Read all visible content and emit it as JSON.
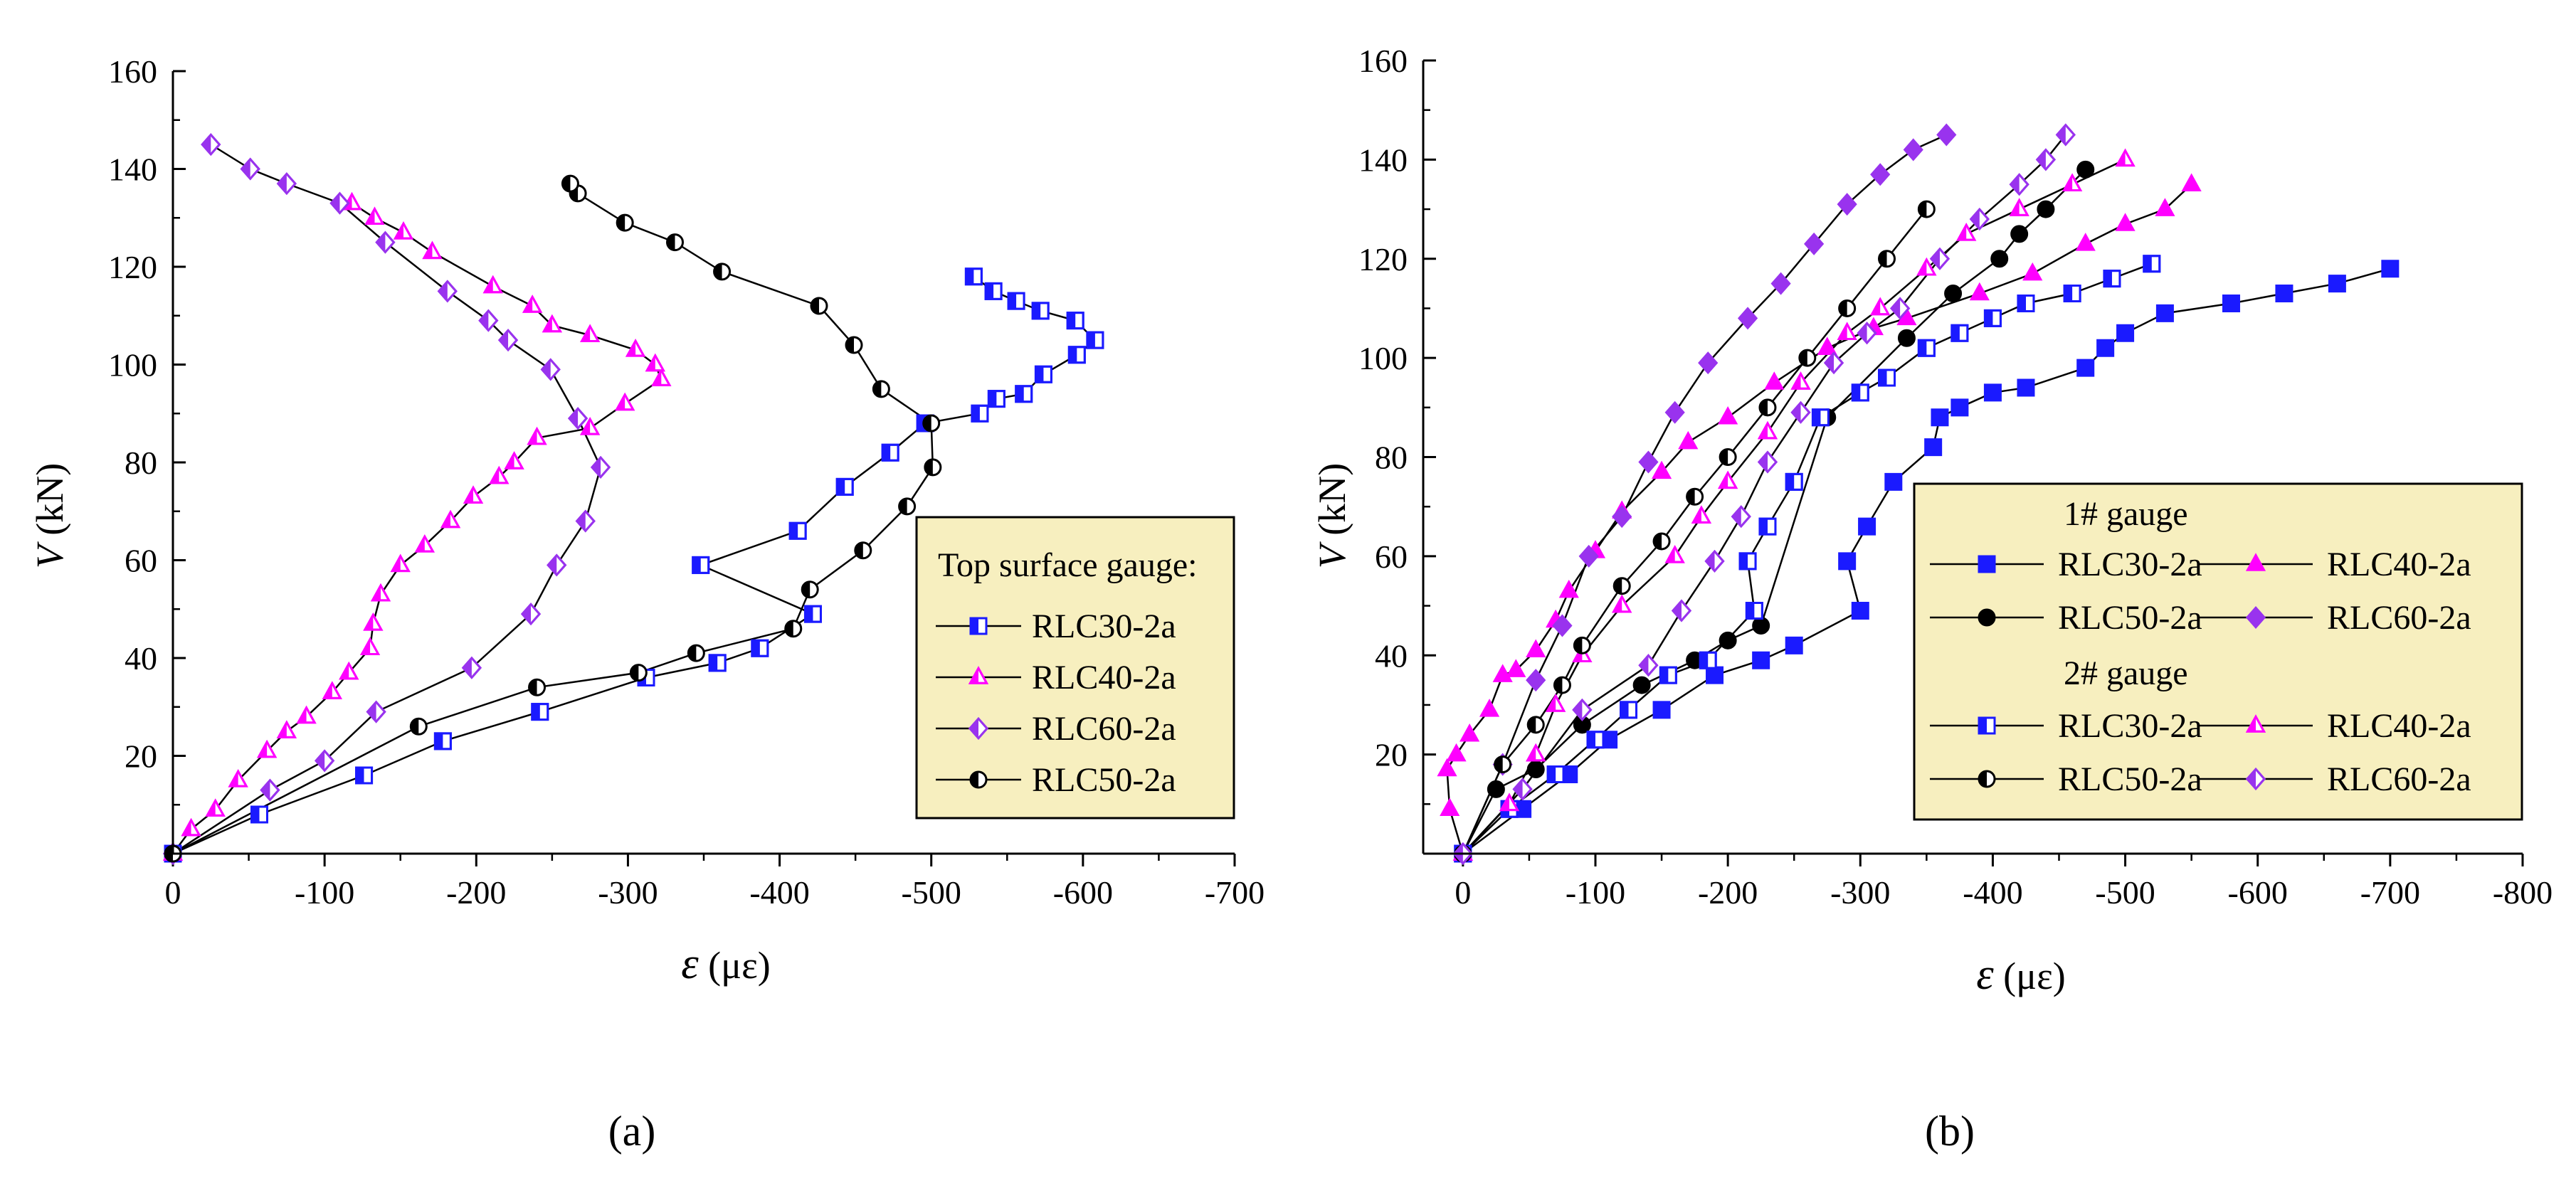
{
  "colors": {
    "blue": "#1a1aff",
    "magenta": "#ff00ff",
    "purple": "#9933ee",
    "black": "#000000",
    "legend_bg": "#f7efbf"
  },
  "chart_data": [
    {
      "type": "line",
      "panel": "(a)",
      "xlabel_sym": "ε",
      "xlabel_unit": "(με)",
      "ylabel_sym": "V",
      "ylabel_unit": "(kN)",
      "xlim": [
        0,
        -700
      ],
      "ylim": [
        0,
        160
      ],
      "xticks": [
        0,
        -100,
        -200,
        -300,
        -400,
        -500,
        -600,
        -700
      ],
      "xtick_labels": [
        "0",
        "-100",
        "-200",
        "-300",
        "-400",
        "-500",
        "-600",
        "-700"
      ],
      "yticks": [
        20,
        40,
        60,
        80,
        100,
        120,
        140,
        160
      ],
      "ytick_labels": [
        "20",
        "40",
        "60",
        "80",
        "100",
        "120",
        "140",
        "160"
      ],
      "legend_title": "Top surface gauge:",
      "series": [
        {
          "name": "RLC30-2a",
          "color": "blue",
          "marker": "square-half",
          "x": [
            0,
            -57,
            -126,
            -178,
            -242,
            -312,
            -359,
            -387,
            -422,
            -348,
            -412,
            -443,
            -473,
            -496,
            -532,
            -543,
            -561,
            -574,
            -596,
            -608,
            -595,
            -572,
            -556,
            -541,
            -528
          ],
          "y": [
            0,
            8,
            16,
            23,
            29,
            36,
            39,
            42,
            49,
            59,
            66,
            75,
            82,
            88,
            90,
            93,
            94,
            98,
            102,
            105,
            109,
            111,
            113,
            115,
            118
          ]
        },
        {
          "name": "RLC40-2a",
          "color": "magenta",
          "marker": "triangle-half",
          "x": [
            0,
            -12,
            -28,
            -43,
            -62,
            -75,
            -88,
            -105,
            -116,
            -130,
            -132,
            -137,
            -150,
            -166,
            -183,
            -198,
            -215,
            -225,
            -240,
            -275,
            -298,
            -322,
            -318,
            -305,
            -275,
            -250,
            -237,
            -211,
            -171,
            -152,
            -133,
            -118
          ],
          "y": [
            0,
            5,
            9,
            15,
            21,
            25,
            28,
            33,
            37,
            42,
            47,
            53,
            59,
            63,
            68,
            73,
            77,
            80,
            85,
            87,
            92,
            97,
            100,
            103,
            106,
            108,
            112,
            116,
            123,
            127,
            130,
            133
          ]
        },
        {
          "name": "RLC60-2a",
          "color": "purple",
          "marker": "diamond-half",
          "x": [
            0,
            -64,
            -100,
            -134,
            -197,
            -236,
            -253,
            -272,
            -282,
            -267,
            -249,
            -221,
            -208,
            -181,
            -140,
            -110,
            -75,
            -51,
            -25
          ],
          "y": [
            0,
            13,
            19,
            29,
            38,
            49,
            59,
            68,
            79,
            89,
            99,
            105,
            109,
            115,
            125,
            133,
            137,
            140,
            145
          ]
        },
        {
          "name": "RLC50-2a",
          "color": "black",
          "marker": "circle-half",
          "x": [
            0,
            -162,
            -240,
            -307,
            -345,
            -409,
            -420,
            -455,
            -484,
            -501,
            -500,
            -467,
            -449,
            -426,
            -362,
            -331,
            -298,
            -267,
            -262
          ],
          "y": [
            0,
            26,
            34,
            37,
            41,
            46,
            54,
            62,
            71,
            79,
            88,
            95,
            104,
            112,
            119,
            125,
            129,
            135,
            137
          ]
        }
      ]
    },
    {
      "type": "line",
      "panel": "(b)",
      "xlabel_sym": "ε",
      "xlabel_unit": "(με)",
      "ylabel_sym": "V",
      "ylabel_unit": "(kN)",
      "xlim": [
        30,
        -800
      ],
      "ylim": [
        0,
        160
      ],
      "xticks": [
        0,
        -100,
        -200,
        -300,
        -400,
        -500,
        -600,
        -700,
        -800
      ],
      "xtick_labels": [
        "0",
        "-100",
        "-200",
        "-300",
        "-400",
        "-500",
        "-600",
        "-700",
        "-800"
      ],
      "yticks": [
        20,
        40,
        60,
        80,
        100,
        120,
        140,
        160
      ],
      "ytick_labels": [
        "20",
        "40",
        "60",
        "80",
        "100",
        "120",
        "140",
        "160"
      ],
      "legend_group1": "1# gauge",
      "legend_group2": "2# gauge",
      "series": [
        {
          "name": "RLC30-2a",
          "group": "1# gauge",
          "color": "blue",
          "marker": "square-filled",
          "x": [
            0,
            -45,
            -80,
            -110,
            -150,
            -190,
            -225,
            -250,
            -300,
            -290,
            -305,
            -325,
            -355,
            -360,
            -375,
            -400,
            -425,
            -470,
            -485,
            -500,
            -530,
            -580,
            -620,
            -660,
            -700
          ],
          "y": [
            0,
            9,
            16,
            23,
            29,
            36,
            39,
            42,
            49,
            59,
            66,
            75,
            82,
            88,
            90,
            93,
            94,
            98,
            102,
            105,
            109,
            111,
            113,
            115,
            118
          ]
        },
        {
          "name": "RLC40-2a",
          "group": "1# gauge",
          "color": "magenta",
          "marker": "triangle-filled",
          "x": [
            0,
            10,
            12,
            5,
            -5,
            -20,
            -30,
            -40,
            -55,
            -70,
            -80,
            -100,
            -120,
            -150,
            -170,
            -200,
            -235,
            -275,
            -310,
            -335,
            -390,
            -430,
            -470,
            -500,
            -530,
            -550
          ],
          "y": [
            0,
            9,
            17,
            20,
            24,
            29,
            36,
            37,
            41,
            47,
            53,
            61,
            69,
            77,
            83,
            88,
            95,
            102,
            106,
            108,
            113,
            117,
            123,
            127,
            130,
            135
          ]
        },
        {
          "name": "RLC50-2a",
          "group": "1# gauge",
          "color": "black",
          "marker": "circle-filled",
          "x": [
            0,
            -25,
            -55,
            -90,
            -135,
            -175,
            -200,
            -225,
            -275,
            -335,
            -370,
            -405,
            -420,
            -440,
            -470
          ],
          "y": [
            0,
            13,
            17,
            26,
            34,
            39,
            43,
            46,
            88,
            104,
            113,
            120,
            125,
            130,
            138
          ]
        },
        {
          "name": "RLC60-2a",
          "group": "1# gauge",
          "color": "purple",
          "marker": "diamond-filled",
          "x": [
            0,
            -30,
            -55,
            -75,
            -95,
            -120,
            -140,
            -160,
            -185,
            -215,
            -240,
            -265,
            -290,
            -315,
            -340,
            -365
          ],
          "y": [
            0,
            18,
            35,
            46,
            60,
            68,
            79,
            89,
            99,
            108,
            115,
            123,
            131,
            137,
            142,
            145
          ]
        },
        {
          "name": "RLC30-2a",
          "group": "2# gauge",
          "color": "blue",
          "marker": "square-half",
          "x": [
            0,
            -35,
            -70,
            -100,
            -125,
            -155,
            -185,
            -220,
            -215,
            -230,
            -250,
            -270,
            -300,
            -320,
            -350,
            -375,
            -400,
            -425,
            -460,
            -490,
            -520
          ],
          "y": [
            0,
            9,
            16,
            23,
            29,
            36,
            39,
            49,
            59,
            66,
            75,
            88,
            93,
            96,
            102,
            105,
            108,
            111,
            113,
            116,
            119
          ]
        },
        {
          "name": "RLC40-2a",
          "group": "2# gauge",
          "color": "magenta",
          "marker": "triangle-half",
          "x": [
            0,
            -35,
            -55,
            -70,
            -90,
            -120,
            -160,
            -180,
            -200,
            -230,
            -255,
            -290,
            -315,
            -350,
            -380,
            -420,
            -460,
            -500
          ],
          "y": [
            0,
            10,
            20,
            30,
            40,
            50,
            60,
            68,
            75,
            85,
            95,
            105,
            110,
            118,
            125,
            130,
            135,
            140
          ]
        },
        {
          "name": "RLC50-2a",
          "group": "2# gauge",
          "color": "black",
          "marker": "circle-half",
          "x": [
            0,
            -30,
            -55,
            -75,
            -90,
            -120,
            -150,
            -175,
            -200,
            -230,
            -260,
            -290,
            -320,
            -350
          ],
          "y": [
            0,
            18,
            26,
            34,
            42,
            54,
            63,
            72,
            80,
            90,
            100,
            110,
            120,
            130
          ]
        },
        {
          "name": "RLC60-2a",
          "group": "2# gauge",
          "color": "purple",
          "marker": "diamond-half",
          "x": [
            0,
            -45,
            -90,
            -140,
            -165,
            -190,
            -210,
            -230,
            -255,
            -280,
            -305,
            -330,
            -360,
            -390,
            -420,
            -440,
            -455
          ],
          "y": [
            0,
            13,
            29,
            38,
            49,
            59,
            68,
            79,
            89,
            99,
            105,
            110,
            120,
            128,
            135,
            140,
            145
          ]
        }
      ]
    }
  ]
}
